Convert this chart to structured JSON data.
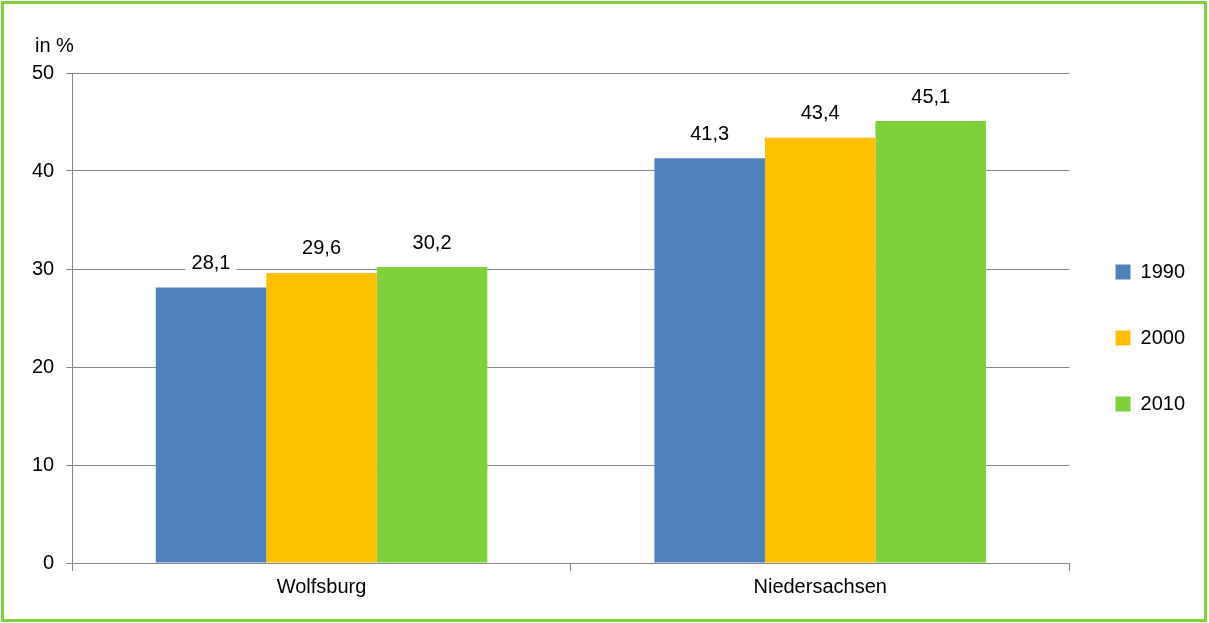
{
  "chart_data": {
    "type": "bar",
    "ylabel": "in %",
    "categories": [
      "Wolfsburg",
      "Niedersachsen"
    ],
    "series": [
      {
        "name": "1990",
        "color": "#4f81bd",
        "values": [
          28.1,
          41.3
        ],
        "value_labels": [
          "28,1",
          "41,3"
        ]
      },
      {
        "name": "2000",
        "color": "#ffc000",
        "values": [
          29.6,
          43.4
        ],
        "value_labels": [
          "29,6",
          "43,4"
        ]
      },
      {
        "name": "2010",
        "color": "#7fd13b",
        "values": [
          30.2,
          45.1
        ],
        "value_labels": [
          "30,2",
          "45,1"
        ]
      }
    ],
    "ylim": [
      0,
      50
    ],
    "yticks": [
      0,
      10,
      20,
      30,
      40,
      50
    ],
    "grid": "y",
    "legend": "right"
  }
}
